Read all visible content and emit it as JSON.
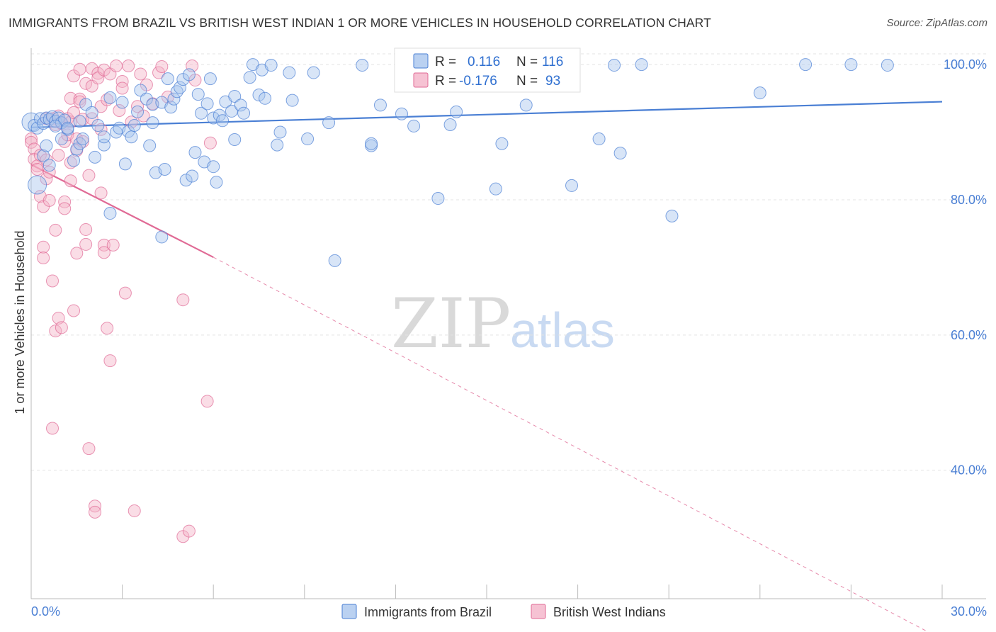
{
  "title": "IMMIGRANTS FROM BRAZIL VS BRITISH WEST INDIAN 1 OR MORE VEHICLES IN HOUSEHOLD CORRELATION CHART",
  "source": "Source: ZipAtlas.com",
  "watermark": {
    "zip": "ZIP",
    "atlas": "atlas"
  },
  "colors": {
    "blue": "#4a7fd4",
    "blue_fill": "#a9c6ee",
    "pink": "#e06a95",
    "pink_fill": "#f4b3c8"
  },
  "legend": {
    "rows": [
      {
        "r_label": "R =",
        "r_value": "0.116",
        "n_label": "N =",
        "n_value": "116"
      },
      {
        "r_label": "R =",
        "r_value": "-0.176",
        "n_label": "N =",
        "n_value": "93"
      }
    ]
  },
  "chart_data": {
    "type": "scatter",
    "title": "IMMIGRANTS FROM BRAZIL VS BRITISH WEST INDIAN 1 OR MORE VEHICLES IN HOUSEHOLD CORRELATION CHART",
    "xlabel": "",
    "ylabel": "1 or more Vehicles in Household",
    "xlim": [
      0,
      30
    ],
    "ylim": [
      21,
      102
    ],
    "x_tick_labels": [
      "0.0%",
      "30.0%"
    ],
    "y_tick_labels": [
      "100.0%",
      "80.0%",
      "60.0%",
      "40.0%"
    ],
    "y_ticks": [
      100,
      80,
      60,
      40
    ],
    "grid": true,
    "legend_position": "top-center",
    "series": [
      {
        "name": "Immigrants from Brazil",
        "color": "#4a7fd4",
        "r": 0.116,
        "n": 116,
        "trend": {
          "x": [
            0,
            30
          ],
          "y": [
            90.7,
            94.5
          ],
          "dashed_extension": false
        },
        "points": [
          [
            0.0,
            91.5
          ],
          [
            0.1,
            91.0
          ],
          [
            0.2,
            90.6
          ],
          [
            0.3,
            92.0
          ],
          [
            0.4,
            91.3
          ],
          [
            0.5,
            92.1
          ],
          [
            0.6,
            91.9
          ],
          [
            0.7,
            92.3
          ],
          [
            0.8,
            91.6
          ],
          [
            0.9,
            92.1
          ],
          [
            1.0,
            91.4
          ],
          [
            1.1,
            91.8
          ],
          [
            1.2,
            90.4
          ],
          [
            0.2,
            82.2
          ],
          [
            0.4,
            86.5
          ],
          [
            0.5,
            88.0
          ],
          [
            0.6,
            85.1
          ],
          [
            0.8,
            90.9
          ],
          [
            1.0,
            89.0
          ],
          [
            1.2,
            90.6
          ],
          [
            1.4,
            85.8
          ],
          [
            1.5,
            87.5
          ],
          [
            1.6,
            91.6
          ],
          [
            1.6,
            88.3
          ],
          [
            1.7,
            89.0
          ],
          [
            1.8,
            94.1
          ],
          [
            2.0,
            92.9
          ],
          [
            2.1,
            86.3
          ],
          [
            2.2,
            91.0
          ],
          [
            2.4,
            88.1
          ],
          [
            2.4,
            89.3
          ],
          [
            2.6,
            95.1
          ],
          [
            2.6,
            78.0
          ],
          [
            2.8,
            90.0
          ],
          [
            2.9,
            90.6
          ],
          [
            3.0,
            94.4
          ],
          [
            3.1,
            85.3
          ],
          [
            3.2,
            90.1
          ],
          [
            3.3,
            89.3
          ],
          [
            3.4,
            91.0
          ],
          [
            3.5,
            93.0
          ],
          [
            3.6,
            96.2
          ],
          [
            3.8,
            94.9
          ],
          [
            3.9,
            88.0
          ],
          [
            4.0,
            91.4
          ],
          [
            4.0,
            94.1
          ],
          [
            4.1,
            84.0
          ],
          [
            4.3,
            94.4
          ],
          [
            4.3,
            74.5
          ],
          [
            4.4,
            84.5
          ],
          [
            4.5,
            97.9
          ],
          [
            4.6,
            93.7
          ],
          [
            4.7,
            94.9
          ],
          [
            4.8,
            96.0
          ],
          [
            4.9,
            96.6
          ],
          [
            5.0,
            97.8
          ],
          [
            5.1,
            82.9
          ],
          [
            5.2,
            98.5
          ],
          [
            5.3,
            83.5
          ],
          [
            5.4,
            87.0
          ],
          [
            5.5,
            95.6
          ],
          [
            5.6,
            92.8
          ],
          [
            5.7,
            85.6
          ],
          [
            5.8,
            94.2
          ],
          [
            5.9,
            97.9
          ],
          [
            6.0,
            92.1
          ],
          [
            6.0,
            84.9
          ],
          [
            6.1,
            82.6
          ],
          [
            6.2,
            92.5
          ],
          [
            6.3,
            91.7
          ],
          [
            6.4,
            94.5
          ],
          [
            6.6,
            93.1
          ],
          [
            6.7,
            95.3
          ],
          [
            6.7,
            88.9
          ],
          [
            6.9,
            94.0
          ],
          [
            7.0,
            92.8
          ],
          [
            7.2,
            98.1
          ],
          [
            7.3,
            100.0
          ],
          [
            7.5,
            95.5
          ],
          [
            7.6,
            99.2
          ],
          [
            7.7,
            95.0
          ],
          [
            7.9,
            99.9
          ],
          [
            8.1,
            88.1
          ],
          [
            8.2,
            90.0
          ],
          [
            8.5,
            98.8
          ],
          [
            8.6,
            94.7
          ],
          [
            9.1,
            89.0
          ],
          [
            9.3,
            98.8
          ],
          [
            9.8,
            91.4
          ],
          [
            10.0,
            71.0
          ],
          [
            10.9,
            99.9
          ],
          [
            11.2,
            88.0
          ],
          [
            11.2,
            88.3
          ],
          [
            11.5,
            94.0
          ],
          [
            12.2,
            92.7
          ],
          [
            12.6,
            90.9
          ],
          [
            13.0,
            97.8
          ],
          [
            13.4,
            80.2
          ],
          [
            13.4,
            99.9
          ],
          [
            13.8,
            91.1
          ],
          [
            14.0,
            93.0
          ],
          [
            14.3,
            99.8
          ],
          [
            15.3,
            81.6
          ],
          [
            15.5,
            88.3
          ],
          [
            16.0,
            100.0
          ],
          [
            16.3,
            94.0
          ],
          [
            17.8,
            82.1
          ],
          [
            18.7,
            89.0
          ],
          [
            19.2,
            99.9
          ],
          [
            19.4,
            86.9
          ],
          [
            20.1,
            100.0
          ],
          [
            21.1,
            77.6
          ],
          [
            24.0,
            95.8
          ],
          [
            25.5,
            100.0
          ],
          [
            27.0,
            100.0
          ],
          [
            28.2,
            99.9
          ]
        ]
      },
      {
        "name": "British West Indians",
        "color": "#e06a95",
        "r": -0.176,
        "n": 93,
        "trend": {
          "x": [
            0,
            6
          ],
          "y": [
            85.2,
            71.5
          ],
          "dashed_x": [
            6,
            30
          ],
          "dashed_y": [
            71.5,
            15.0
          ]
        },
        "points": [
          [
            0.0,
            89.0
          ],
          [
            0.0,
            88.5
          ],
          [
            0.1,
            87.5
          ],
          [
            0.1,
            86.0
          ],
          [
            0.2,
            85.0
          ],
          [
            0.2,
            84.5
          ],
          [
            0.3,
            86.6
          ],
          [
            0.3,
            80.5
          ],
          [
            0.4,
            79.0
          ],
          [
            0.4,
            73.0
          ],
          [
            0.4,
            71.4
          ],
          [
            0.5,
            92.0
          ],
          [
            0.5,
            85.9
          ],
          [
            0.5,
            83.1
          ],
          [
            0.6,
            84.1
          ],
          [
            0.6,
            79.9
          ],
          [
            0.7,
            92.0
          ],
          [
            0.7,
            68.0
          ],
          [
            0.7,
            46.2
          ],
          [
            0.8,
            91.1
          ],
          [
            0.8,
            75.5
          ],
          [
            0.8,
            60.6
          ],
          [
            0.9,
            92.4
          ],
          [
            0.9,
            86.6
          ],
          [
            0.9,
            62.5
          ],
          [
            1.0,
            61.1
          ],
          [
            1.0,
            91.3
          ],
          [
            1.1,
            88.6
          ],
          [
            1.1,
            79.7
          ],
          [
            1.1,
            78.7
          ],
          [
            1.2,
            92.0
          ],
          [
            1.2,
            89.6
          ],
          [
            1.3,
            95.0
          ],
          [
            1.3,
            91.5
          ],
          [
            1.3,
            85.5
          ],
          [
            1.3,
            82.8
          ],
          [
            1.4,
            98.3
          ],
          [
            1.4,
            92.9
          ],
          [
            1.4,
            63.6
          ],
          [
            1.5,
            89.0
          ],
          [
            1.5,
            87.3
          ],
          [
            1.5,
            72.1
          ],
          [
            1.6,
            99.3
          ],
          [
            1.6,
            94.9
          ],
          [
            1.6,
            94.5
          ],
          [
            1.7,
            91.9
          ],
          [
            1.7,
            88.6
          ],
          [
            1.8,
            97.2
          ],
          [
            1.8,
            75.6
          ],
          [
            1.8,
            73.4
          ],
          [
            1.9,
            83.6
          ],
          [
            1.9,
            43.2
          ],
          [
            2.0,
            99.4
          ],
          [
            2.0,
            96.8
          ],
          [
            2.0,
            92.0
          ],
          [
            2.1,
            34.7
          ],
          [
            2.1,
            33.8
          ],
          [
            2.2,
            98.7
          ],
          [
            2.2,
            98.0
          ],
          [
            2.3,
            93.8
          ],
          [
            2.3,
            90.4
          ],
          [
            2.3,
            81.0
          ],
          [
            2.4,
            99.2
          ],
          [
            2.4,
            73.3
          ],
          [
            2.4,
            72.2
          ],
          [
            2.5,
            94.8
          ],
          [
            2.5,
            61.0
          ],
          [
            2.6,
            98.6
          ],
          [
            2.6,
            56.2
          ],
          [
            2.7,
            73.3
          ],
          [
            2.8,
            99.8
          ],
          [
            2.9,
            93.2
          ],
          [
            3.0,
            97.5
          ],
          [
            3.0,
            96.5
          ],
          [
            3.1,
            66.2
          ],
          [
            3.2,
            99.8
          ],
          [
            3.3,
            91.5
          ],
          [
            3.4,
            34.0
          ],
          [
            3.5,
            93.8
          ],
          [
            3.6,
            98.6
          ],
          [
            3.7,
            92.4
          ],
          [
            3.8,
            97.0
          ],
          [
            4.0,
            94.2
          ],
          [
            4.2,
            98.8
          ],
          [
            4.3,
            99.7
          ],
          [
            4.5,
            95.2
          ],
          [
            5.0,
            65.2
          ],
          [
            5.0,
            30.2
          ],
          [
            5.2,
            31.0
          ],
          [
            5.3,
            99.8
          ],
          [
            5.4,
            97.7
          ],
          [
            5.8,
            50.2
          ],
          [
            5.9,
            88.4
          ]
        ]
      }
    ]
  },
  "bottom_legend": [
    {
      "label": "Immigrants from Brazil"
    },
    {
      "label": "British West Indians"
    }
  ]
}
